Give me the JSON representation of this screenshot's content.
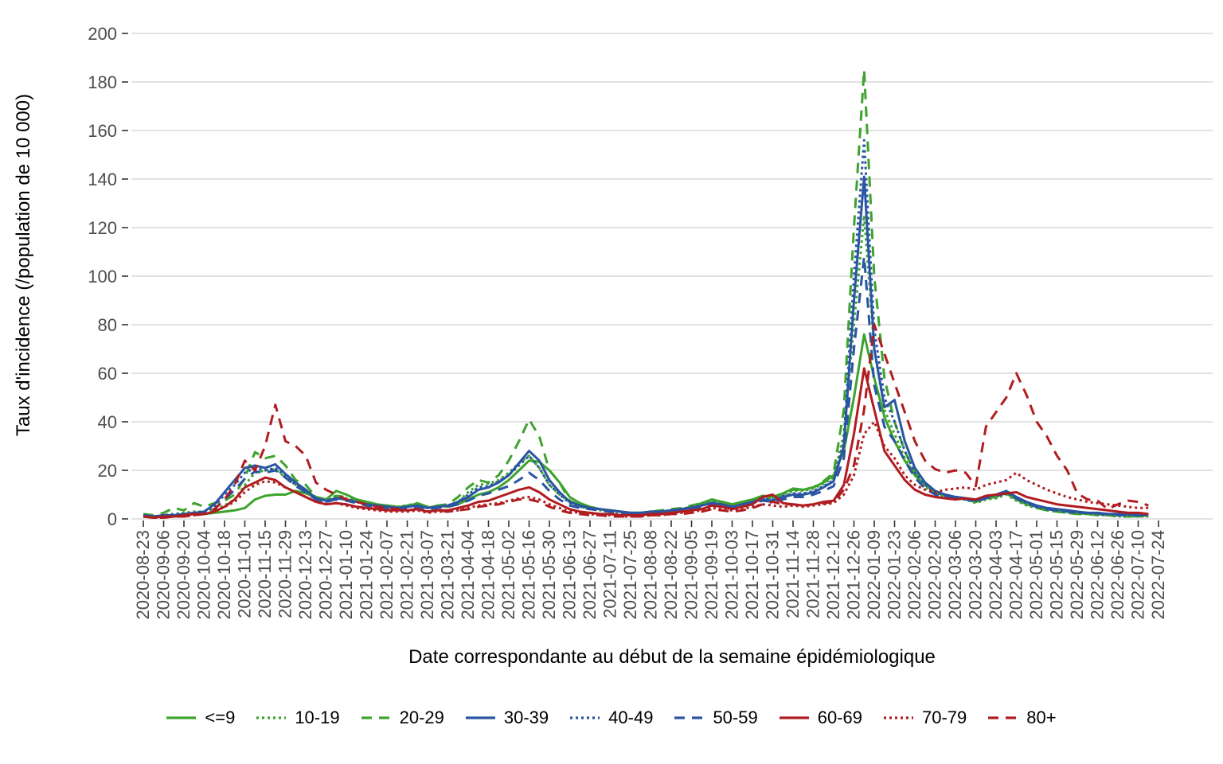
{
  "chart_data": {
    "type": "line",
    "title": "",
    "xlabel": "Date correspondante au début de la semaine épidémiologique",
    "ylabel": "Taux d'incidence (/population de 10 000)",
    "ylim": [
      0,
      200
    ],
    "yticks": [
      0,
      20,
      40,
      60,
      80,
      100,
      120,
      140,
      160,
      180,
      200
    ],
    "grid": "horizontal-major-only",
    "legend_position": "bottom",
    "x_interval": "weekly",
    "x_start": "2020-08-23",
    "x_end": "2022-07-17",
    "n_weeks": 100,
    "x_tick_every_n_weeks": 2,
    "x_tick_labels": [
      "2020-08-23",
      "2020-09-06",
      "2020-09-20",
      "2020-10-04",
      "2020-10-18",
      "2020-11-01",
      "2020-11-15",
      "2020-11-29",
      "2020-12-13",
      "2020-12-27",
      "2021-01-10",
      "2021-01-24",
      "2021-02-07",
      "2021-02-21",
      "2021-03-07",
      "2021-03-21",
      "2021-04-04",
      "2021-04-18",
      "2021-05-02",
      "2021-05-16",
      "2021-05-30",
      "2021-06-13",
      "2021-06-27",
      "2021-07-11",
      "2021-07-25",
      "2021-08-08",
      "2021-08-22",
      "2021-09-05",
      "2021-09-19",
      "2021-10-03",
      "2021-10-17",
      "2021-10-31",
      "2021-11-14",
      "2021-11-28",
      "2021-12-12",
      "2021-12-26",
      "2022-01-09",
      "2022-01-23",
      "2022-02-06",
      "2022-02-20",
      "2022-03-06",
      "2022-03-20",
      "2022-04-03",
      "2022-04-17",
      "2022-05-01",
      "2022-05-15",
      "2022-05-29",
      "2022-06-12",
      "2022-06-26",
      "2022-07-10",
      "2022-07-24"
    ],
    "style": {
      "grid_color": "#d9d9d9",
      "tick_color": "#333333",
      "tick_label_color": "#4d4d4d",
      "background": "#ffffff"
    },
    "series": [
      {
        "name": "<=9",
        "color": "#3DA32C",
        "linetype": "solid",
        "values": [
          1.5,
          1,
          1,
          1,
          1.5,
          2,
          2,
          2.5,
          3,
          3.5,
          4.5,
          8,
          9.5,
          10,
          10,
          11.5,
          10.5,
          9,
          8,
          11.5,
          10,
          8,
          7,
          6,
          5.5,
          5,
          5,
          6.5,
          4.5,
          5.5,
          5,
          6,
          8,
          10,
          11,
          13,
          16,
          20,
          24,
          23.5,
          20,
          15,
          9,
          6.5,
          5,
          4,
          3.5,
          3,
          2.5,
          2.5,
          3,
          3,
          3.5,
          4,
          5,
          6.5,
          8,
          7,
          6,
          7,
          8,
          9.5,
          9,
          10.5,
          12.5,
          12,
          13,
          15,
          18,
          28,
          50,
          76,
          58,
          42,
          32,
          24,
          18,
          14,
          11,
          9.5,
          9,
          8.5,
          7,
          8.5,
          9,
          11,
          8,
          6,
          5,
          4,
          3.5,
          3,
          2.5,
          2,
          2,
          1.5,
          1.5,
          1.5,
          1,
          1.5
        ]
      },
      {
        "name": "10-19",
        "color": "#3DA32C",
        "linetype": "dotted",
        "values": [
          1.5,
          1,
          1.5,
          2,
          2.5,
          3,
          3,
          4,
          5.5,
          8,
          14,
          19,
          20,
          20.5,
          17,
          14,
          12,
          9,
          7.5,
          9,
          8.5,
          7.5,
          6.5,
          5.5,
          5,
          4.5,
          5,
          6,
          4.5,
          5,
          5.5,
          7,
          11,
          14,
          14.5,
          16,
          19,
          23,
          26,
          21,
          14,
          10,
          7,
          5,
          4,
          3.5,
          3,
          2.5,
          2.5,
          2.5,
          3,
          3,
          3.5,
          4,
          5,
          6,
          7.5,
          6.5,
          5.5,
          6.5,
          7.5,
          9,
          8.5,
          10,
          11.5,
          11.5,
          12.5,
          14.5,
          17,
          35,
          80,
          125,
          70,
          45,
          35,
          25,
          18,
          13,
          10.5,
          9,
          8.5,
          8,
          6.5,
          8,
          8.5,
          10,
          7.5,
          5.5,
          4.5,
          3.5,
          3,
          2.5,
          2,
          2,
          1.5,
          1.5,
          1,
          1,
          1,
          1
        ]
      },
      {
        "name": "20-29",
        "color": "#3DA32C",
        "linetype": "dashed",
        "values": [
          2,
          1.5,
          2.5,
          4.5,
          3.5,
          6.5,
          5,
          6.5,
          7.5,
          10,
          17,
          27.5,
          25,
          26,
          22,
          16,
          14,
          9,
          8,
          9.5,
          9,
          8,
          7,
          6,
          5.5,
          5,
          5.5,
          6.5,
          5,
          5.5,
          6,
          9,
          13,
          16,
          15,
          18,
          24,
          32,
          41,
          34,
          20,
          15,
          7.5,
          5.5,
          4.5,
          4,
          3.5,
          3,
          2.5,
          2.5,
          3,
          3.5,
          4,
          4.5,
          5.5,
          6.5,
          8,
          7,
          6,
          7,
          8,
          9.5,
          9,
          10.5,
          12,
          12,
          13,
          15.5,
          19,
          45,
          120,
          185,
          100,
          58,
          40,
          28,
          19,
          14,
          11,
          9.5,
          9,
          8.5,
          7,
          8.5,
          9,
          10.5,
          8,
          6,
          4.5,
          3.5,
          3,
          2.5,
          2,
          2,
          1.5,
          1.5,
          1,
          1,
          1,
          1.5
        ]
      },
      {
        "name": "30-39",
        "color": "#2A55A2",
        "linetype": "solid",
        "values": [
          1.5,
          1,
          1.5,
          1.5,
          2,
          2.5,
          3,
          6,
          11,
          16,
          21,
          22,
          21,
          22.5,
          18.5,
          15,
          12,
          8.5,
          7.5,
          8.5,
          8,
          7,
          6,
          5.5,
          5,
          4.5,
          5,
          5.5,
          4.5,
          5,
          5.5,
          7,
          9,
          12,
          13,
          15,
          18,
          23,
          28,
          24,
          16,
          11,
          7,
          5.5,
          4.5,
          4,
          3.5,
          3,
          2.5,
          2.5,
          3,
          3,
          3.5,
          4,
          4.5,
          5.5,
          6.5,
          6,
          5,
          6,
          7,
          8,
          7.5,
          9,
          10,
          10,
          11,
          13,
          15.5,
          30,
          90,
          141,
          70,
          46,
          49,
          32,
          21,
          15,
          11.5,
          10,
          9,
          8.5,
          7.5,
          9,
          10,
          11.5,
          9,
          7,
          5.5,
          4.5,
          4,
          3.5,
          3,
          2.5,
          2.5,
          2,
          2,
          2,
          1.5,
          2
        ]
      },
      {
        "name": "40-49",
        "color": "#2A55A2",
        "linetype": "dotted",
        "values": [
          1.5,
          1,
          1.5,
          2,
          2,
          2.5,
          3,
          5,
          10,
          14,
          19,
          21,
          20,
          21,
          17.5,
          14,
          11.5,
          8,
          7,
          8.5,
          8,
          7,
          6,
          5.5,
          5,
          4.5,
          5,
          5.5,
          4.5,
          5,
          5.5,
          7,
          10,
          13,
          13.5,
          15.5,
          18,
          22,
          26,
          21,
          14,
          10,
          6.5,
          5,
          4.5,
          4,
          3.5,
          3,
          2.5,
          2.5,
          3,
          3,
          3.5,
          4,
          5,
          5.5,
          7,
          6,
          5,
          6,
          7,
          8.5,
          8,
          9.5,
          10.5,
          10.5,
          11.5,
          13.5,
          16,
          32,
          100,
          156,
          78,
          50,
          40,
          28,
          19,
          14,
          11,
          9.5,
          9,
          8.5,
          7.5,
          9,
          10,
          11,
          8.5,
          6.5,
          5,
          4,
          3.5,
          3,
          2.5,
          2.5,
          2,
          2,
          1.5,
          1.5,
          1.5,
          1.5
        ]
      },
      {
        "name": "50-59",
        "color": "#2A55A2",
        "linetype": "dashed",
        "values": [
          1,
          1,
          1,
          1.5,
          2,
          2,
          2.5,
          4,
          8,
          12,
          16.5,
          19.5,
          19,
          20,
          17,
          13.5,
          11,
          8,
          7,
          8,
          7.5,
          6.5,
          5.5,
          5,
          4.5,
          4,
          4.5,
          5,
          4,
          4.5,
          5,
          6,
          7.5,
          9.5,
          10.5,
          12,
          13.5,
          16,
          19,
          16,
          11.5,
          8,
          5.5,
          4.5,
          4,
          3.5,
          3,
          2.5,
          2,
          2,
          2.5,
          2.5,
          3,
          3.5,
          4,
          5,
          6,
          5.5,
          4.5,
          5.5,
          6.5,
          7.5,
          7,
          8,
          9,
          9,
          10,
          11.5,
          13.5,
          25,
          70,
          108,
          55,
          38,
          32,
          24,
          17,
          12.5,
          10,
          9,
          8.5,
          8,
          7,
          8.5,
          9.5,
          10.5,
          8.5,
          6.5,
          5,
          4,
          3.5,
          3,
          2.5,
          2.5,
          2,
          2,
          1.5,
          1.5,
          1.5,
          1.5
        ]
      },
      {
        "name": "60-69",
        "color": "#B01C20",
        "linetype": "solid",
        "values": [
          1,
          0.5,
          1,
          1,
          1.5,
          2,
          2,
          3,
          5,
          8,
          13,
          15,
          17,
          16,
          13,
          11,
          9,
          7,
          6,
          6.5,
          6,
          5,
          4.5,
          4,
          3.5,
          3.5,
          3.5,
          4,
          3,
          3.5,
          3.5,
          4.5,
          5.5,
          7,
          7.5,
          9,
          10.5,
          12,
          13,
          11,
          8,
          6,
          4,
          3,
          2.5,
          2,
          2,
          1.5,
          1.5,
          1.5,
          2,
          2,
          2.5,
          3,
          3.5,
          4,
          5.5,
          5,
          4,
          5,
          6,
          9,
          10,
          6.5,
          6,
          5.5,
          6,
          7,
          7.5,
          14,
          35,
          62,
          45,
          28,
          22,
          16,
          12,
          10,
          9,
          8.5,
          8,
          8.5,
          8,
          9.5,
          10,
          10.5,
          11,
          9,
          8,
          7,
          6,
          5.5,
          5,
          4.5,
          4,
          3.5,
          3,
          2.5,
          2.5,
          2
        ]
      },
      {
        "name": "70-79",
        "color": "#B01C20",
        "linetype": "dotted",
        "values": [
          1,
          0.5,
          0.5,
          1,
          1,
          1.5,
          2,
          3,
          5,
          7,
          11,
          14,
          15.5,
          15,
          13,
          11,
          9,
          7,
          6,
          6.5,
          5.5,
          4.5,
          4,
          3.5,
          3,
          3,
          3,
          3.5,
          2.5,
          3,
          3,
          3.5,
          4.5,
          5.5,
          6,
          6.5,
          7.5,
          8.5,
          9,
          8,
          6,
          4.5,
          3,
          2.5,
          2,
          1.5,
          1.5,
          1,
          1,
          1,
          1.5,
          1.5,
          2,
          2.5,
          3,
          3.5,
          4.5,
          4,
          3.5,
          4,
          5,
          6,
          5.5,
          5,
          5.5,
          5,
          5.5,
          6,
          6.5,
          10,
          18,
          35,
          40,
          30,
          25,
          18,
          14,
          12,
          11,
          12,
          12.5,
          13,
          12,
          14,
          15,
          16,
          19,
          16,
          14,
          12,
          10.5,
          9,
          8,
          7,
          6.5,
          6,
          5.5,
          5,
          4.5,
          4.5
        ]
      },
      {
        "name": "80+",
        "color": "#B01C20",
        "linetype": "dashed",
        "values": [
          1,
          0.5,
          0.5,
          1,
          1,
          1.5,
          2,
          4,
          8,
          14,
          24,
          20,
          30,
          47,
          32,
          30,
          26,
          15,
          12,
          10,
          8,
          7,
          6,
          5,
          4.5,
          4,
          3.5,
          4,
          3,
          3.5,
          3,
          3.5,
          4,
          5,
          5.5,
          6,
          7,
          8,
          8,
          7,
          5,
          3.5,
          2.5,
          2,
          1.5,
          1.5,
          1,
          1,
          1,
          1,
          1.5,
          1.5,
          2,
          2,
          2.5,
          3,
          4,
          3.5,
          3,
          3.5,
          4.5,
          6,
          7,
          6,
          6,
          5.5,
          6,
          6.5,
          7,
          12,
          22,
          45,
          80,
          68,
          56,
          44,
          32,
          24,
          20.5,
          19,
          20,
          19,
          13.5,
          38,
          44,
          50,
          60,
          51,
          40,
          34,
          26,
          20,
          10.5,
          8,
          7.5,
          4,
          6,
          7.5,
          7,
          5.5
        ]
      }
    ]
  }
}
